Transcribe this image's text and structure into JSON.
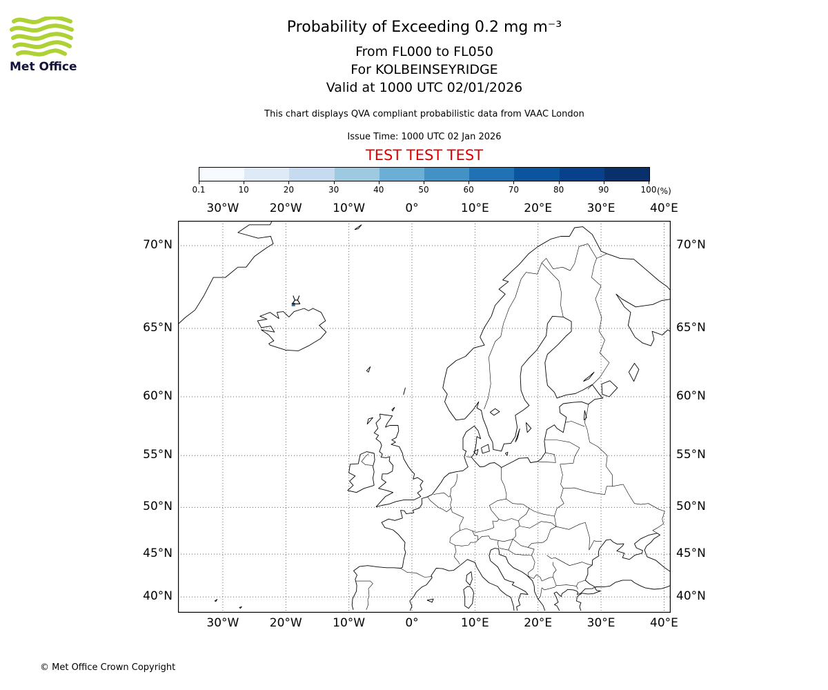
{
  "logo": {
    "brand": "Met Office",
    "wave_color": "#aed136",
    "text_color": "#13123a"
  },
  "header": {
    "title": "Probability of Exceeding 0.2 mg m⁻³",
    "subtitle_flight_levels": "From FL000 to FL050",
    "subtitle_volcano": "For KOLBEINSEYRIDGE",
    "subtitle_valid": "Valid at 1000 UTC 02/01/2026",
    "description": "This chart displays QVA compliant probabilistic data from VAAC London",
    "issue_time": "Issue Time: 1000 UTC 02 Jan 2026",
    "test_banner": "TEST TEST TEST",
    "test_color": "#dd0000"
  },
  "chart_data": {
    "type": "map",
    "projection": "mercator",
    "colorbar": {
      "ticks": [
        "0.1",
        "10",
        "20",
        "30",
        "40",
        "50",
        "60",
        "70",
        "80",
        "90",
        "100"
      ],
      "unit": "(%)",
      "colors": [
        "#f7fbff",
        "#deebf7",
        "#c6dbef",
        "#9ecae1",
        "#6baed6",
        "#4292c6",
        "#2171b5",
        "#0b559f",
        "#08408b",
        "#08306b"
      ]
    },
    "axes": {
      "lon_ticks": [
        "30°W",
        "20°W",
        "10°W",
        "0°",
        "10°E",
        "20°E",
        "30°E",
        "40°E"
      ],
      "lon_values": [
        -30,
        -20,
        -10,
        0,
        10,
        20,
        30,
        40
      ],
      "lat_ticks": [
        "70°N",
        "65°N",
        "60°N",
        "55°N",
        "50°N",
        "45°N",
        "40°N"
      ],
      "lat_values": [
        70,
        65,
        60,
        55,
        50,
        45,
        40
      ]
    },
    "volcano": {
      "name": "KOLBEINSEYRIDGE",
      "lon": -18.35,
      "lat": 66.85
    },
    "data_cells": [
      {
        "lon": -18.8,
        "lat": 66.55,
        "color": "#2171b5"
      }
    ],
    "style": {
      "coast": "#000000",
      "border": "#000000",
      "grid": "#666666",
      "frame": "#000000",
      "sea": "#ffffff"
    }
  },
  "footer": {
    "copyright": "© Met Office Crown Copyright"
  }
}
